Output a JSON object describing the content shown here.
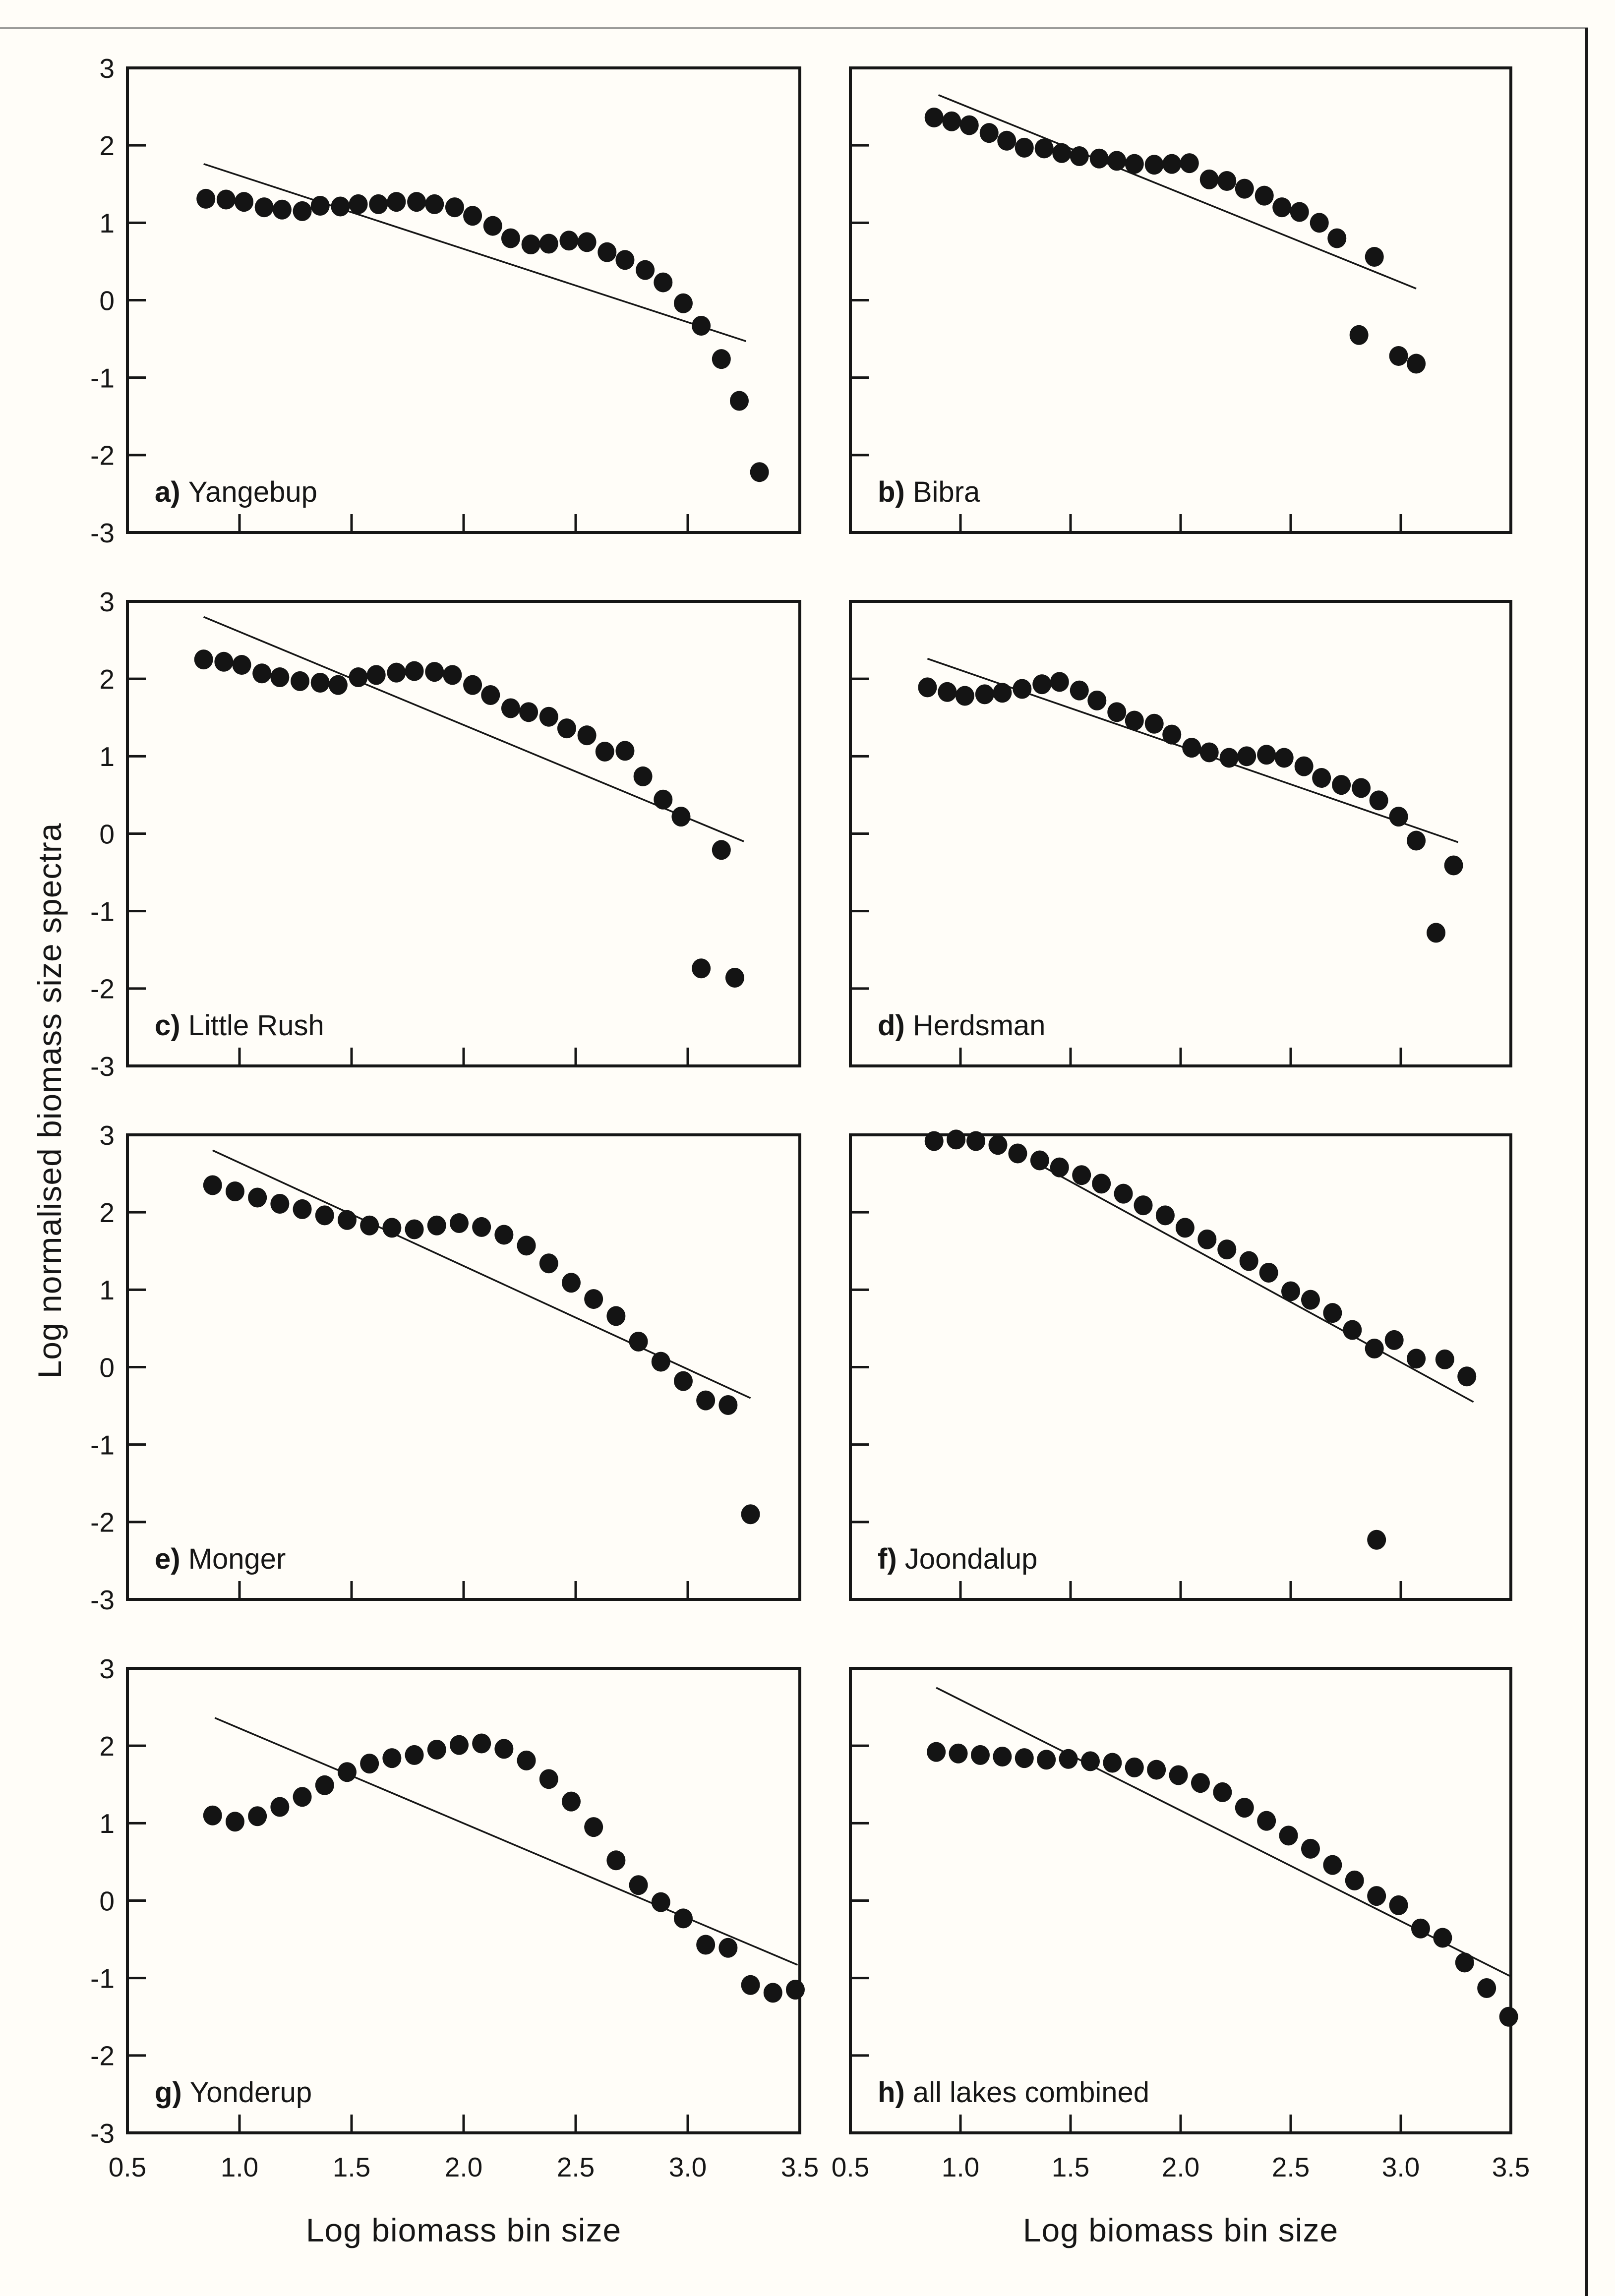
{
  "figure": {
    "y_axis_title": "Log normalised biomass size spectra",
    "x_axis_title": "Log biomass bin size",
    "colors": {
      "ink": "#161616",
      "dot": "#141414",
      "background": "#fffdf8",
      "border": "#9a9a98"
    }
  },
  "chart_data": {
    "type": "scatter",
    "xlabel": "Log biomass bin size",
    "ylabel": "Log normalised biomass size spectra",
    "xlim": [
      0.5,
      3.5
    ],
    "ylim": [
      -3,
      3
    ],
    "x_ticks": [
      1.0,
      1.5,
      2.0,
      2.5,
      3.0
    ],
    "x_tick_labels": [
      "0.5",
      "1.0",
      "1.5",
      "2.0",
      "2.5",
      "3.0",
      "3.5"
    ],
    "x_tick_label_values": [
      0.5,
      1.0,
      1.5,
      2.0,
      2.5,
      3.0,
      3.5
    ],
    "y_ticks": [
      -2,
      -1,
      0,
      1,
      2
    ],
    "y_tick_labels": [
      "3",
      "2",
      "1",
      "0",
      "-1",
      "-2",
      "-3"
    ],
    "y_tick_label_values": [
      3,
      2,
      1,
      0,
      -1,
      -2,
      -3
    ],
    "grid": false,
    "legend": "none",
    "panels": [
      {
        "letter": "a",
        "name": "Yangebup",
        "points": [
          [
            0.85,
            1.31
          ],
          [
            0.94,
            1.3
          ],
          [
            1.02,
            1.27
          ],
          [
            1.11,
            1.2
          ],
          [
            1.19,
            1.17
          ],
          [
            1.28,
            1.15
          ],
          [
            1.36,
            1.22
          ],
          [
            1.45,
            1.21
          ],
          [
            1.53,
            1.24
          ],
          [
            1.62,
            1.24
          ],
          [
            1.7,
            1.27
          ],
          [
            1.79,
            1.27
          ],
          [
            1.87,
            1.24
          ],
          [
            1.96,
            1.2
          ],
          [
            2.04,
            1.09
          ],
          [
            2.13,
            0.96
          ],
          [
            2.21,
            0.8
          ],
          [
            2.3,
            0.72
          ],
          [
            2.38,
            0.73
          ],
          [
            2.47,
            0.77
          ],
          [
            2.55,
            0.75
          ],
          [
            2.64,
            0.62
          ],
          [
            2.72,
            0.52
          ],
          [
            2.81,
            0.39
          ],
          [
            2.89,
            0.23
          ],
          [
            2.98,
            -0.04
          ],
          [
            3.06,
            -0.33
          ],
          [
            3.15,
            -0.76
          ],
          [
            3.23,
            -1.3
          ],
          [
            3.32,
            -2.22
          ]
        ],
        "trendline": {
          "x1": 0.84,
          "y1": 1.76,
          "x2": 3.26,
          "y2": -0.53
        }
      },
      {
        "letter": "b",
        "name": "Bibra",
        "points": [
          [
            0.88,
            2.36
          ],
          [
            0.96,
            2.31
          ],
          [
            1.04,
            2.26
          ],
          [
            1.13,
            2.16
          ],
          [
            1.21,
            2.06
          ],
          [
            1.29,
            1.97
          ],
          [
            1.38,
            1.96
          ],
          [
            1.46,
            1.9
          ],
          [
            1.54,
            1.86
          ],
          [
            1.63,
            1.83
          ],
          [
            1.71,
            1.8
          ],
          [
            1.79,
            1.76
          ],
          [
            1.88,
            1.75
          ],
          [
            1.96,
            1.76
          ],
          [
            2.04,
            1.77
          ],
          [
            2.13,
            1.56
          ],
          [
            2.21,
            1.54
          ],
          [
            2.29,
            1.44
          ],
          [
            2.38,
            1.35
          ],
          [
            2.46,
            1.2
          ],
          [
            2.54,
            1.14
          ],
          [
            2.63,
            1.0
          ],
          [
            2.71,
            0.8
          ],
          [
            2.88,
            0.56
          ],
          [
            2.81,
            -0.45
          ],
          [
            2.99,
            -0.72
          ],
          [
            3.07,
            -0.82
          ]
        ],
        "trendline": {
          "x1": 0.9,
          "y1": 2.65,
          "x2": 3.07,
          "y2": 0.15
        }
      },
      {
        "letter": "c",
        "name": "Little Rush",
        "points": [
          [
            0.84,
            2.25
          ],
          [
            0.93,
            2.22
          ],
          [
            1.01,
            2.18
          ],
          [
            1.1,
            2.07
          ],
          [
            1.18,
            2.02
          ],
          [
            1.27,
            1.97
          ],
          [
            1.36,
            1.95
          ],
          [
            1.44,
            1.92
          ],
          [
            1.53,
            2.02
          ],
          [
            1.61,
            2.05
          ],
          [
            1.7,
            2.08
          ],
          [
            1.78,
            2.1
          ],
          [
            1.87,
            2.09
          ],
          [
            1.95,
            2.05
          ],
          [
            2.04,
            1.92
          ],
          [
            2.12,
            1.79
          ],
          [
            2.21,
            1.62
          ],
          [
            2.29,
            1.57
          ],
          [
            2.38,
            1.51
          ],
          [
            2.46,
            1.36
          ],
          [
            2.55,
            1.27
          ],
          [
            2.63,
            1.06
          ],
          [
            2.72,
            1.07
          ],
          [
            2.8,
            0.74
          ],
          [
            2.89,
            0.44
          ],
          [
            2.97,
            0.22
          ],
          [
            3.15,
            -0.21
          ],
          [
            3.06,
            -1.74
          ],
          [
            3.21,
            -1.86
          ]
        ],
        "trendline": {
          "x1": 0.84,
          "y1": 2.8,
          "x2": 3.25,
          "y2": -0.1
        }
      },
      {
        "letter": "d",
        "name": "Herdsman",
        "points": [
          [
            0.85,
            1.89
          ],
          [
            0.94,
            1.83
          ],
          [
            1.02,
            1.78
          ],
          [
            1.11,
            1.8
          ],
          [
            1.19,
            1.82
          ],
          [
            1.28,
            1.87
          ],
          [
            1.37,
            1.93
          ],
          [
            1.45,
            1.96
          ],
          [
            1.54,
            1.85
          ],
          [
            1.62,
            1.72
          ],
          [
            1.71,
            1.57
          ],
          [
            1.79,
            1.46
          ],
          [
            1.88,
            1.42
          ],
          [
            1.96,
            1.28
          ],
          [
            2.05,
            1.11
          ],
          [
            2.13,
            1.05
          ],
          [
            2.22,
            0.98
          ],
          [
            2.3,
            1.0
          ],
          [
            2.39,
            1.02
          ],
          [
            2.47,
            0.98
          ],
          [
            2.56,
            0.87
          ],
          [
            2.64,
            0.72
          ],
          [
            2.73,
            0.63
          ],
          [
            2.82,
            0.59
          ],
          [
            2.9,
            0.43
          ],
          [
            2.99,
            0.22
          ],
          [
            3.07,
            -0.09
          ],
          [
            3.24,
            -0.41
          ],
          [
            3.16,
            -1.28
          ]
        ],
        "trendline": {
          "x1": 0.85,
          "y1": 2.26,
          "x2": 3.26,
          "y2": -0.11
        }
      },
      {
        "letter": "e",
        "name": "Monger",
        "points": [
          [
            0.88,
            2.35
          ],
          [
            0.98,
            2.27
          ],
          [
            1.08,
            2.19
          ],
          [
            1.18,
            2.11
          ],
          [
            1.28,
            2.04
          ],
          [
            1.38,
            1.96
          ],
          [
            1.48,
            1.9
          ],
          [
            1.58,
            1.83
          ],
          [
            1.68,
            1.8
          ],
          [
            1.78,
            1.78
          ],
          [
            1.88,
            1.83
          ],
          [
            1.98,
            1.86
          ],
          [
            2.08,
            1.81
          ],
          [
            2.18,
            1.71
          ],
          [
            2.28,
            1.57
          ],
          [
            2.38,
            1.34
          ],
          [
            2.48,
            1.09
          ],
          [
            2.58,
            0.88
          ],
          [
            2.68,
            0.66
          ],
          [
            2.78,
            0.33
          ],
          [
            2.88,
            0.07
          ],
          [
            2.98,
            -0.18
          ],
          [
            3.08,
            -0.43
          ],
          [
            3.18,
            -0.49
          ],
          [
            3.28,
            -1.9
          ]
        ],
        "trendline": {
          "x1": 0.88,
          "y1": 2.8,
          "x2": 3.28,
          "y2": -0.4
        }
      },
      {
        "letter": "f",
        "name": "Joondalup",
        "points": [
          [
            0.88,
            2.92
          ],
          [
            0.98,
            2.94
          ],
          [
            1.07,
            2.92
          ],
          [
            1.17,
            2.87
          ],
          [
            1.26,
            2.76
          ],
          [
            1.36,
            2.67
          ],
          [
            1.45,
            2.58
          ],
          [
            1.55,
            2.48
          ],
          [
            1.64,
            2.37
          ],
          [
            1.74,
            2.24
          ],
          [
            1.83,
            2.09
          ],
          [
            1.93,
            1.96
          ],
          [
            2.02,
            1.8
          ],
          [
            2.12,
            1.65
          ],
          [
            2.21,
            1.52
          ],
          [
            2.31,
            1.37
          ],
          [
            2.4,
            1.22
          ],
          [
            2.5,
            0.98
          ],
          [
            2.59,
            0.87
          ],
          [
            2.69,
            0.7
          ],
          [
            2.78,
            0.48
          ],
          [
            2.88,
            0.24
          ],
          [
            2.97,
            0.35
          ],
          [
            3.07,
            0.11
          ],
          [
            3.2,
            0.1
          ],
          [
            3.3,
            -0.12
          ],
          [
            2.89,
            -2.23
          ]
        ],
        "trendline": {
          "x1": 1.33,
          "y1": 2.66,
          "x2": 3.33,
          "y2": -0.45
        }
      },
      {
        "letter": "g",
        "name": "Yonderup",
        "points": [
          [
            0.88,
            1.1
          ],
          [
            0.98,
            1.02
          ],
          [
            1.08,
            1.09
          ],
          [
            1.18,
            1.21
          ],
          [
            1.28,
            1.34
          ],
          [
            1.38,
            1.49
          ],
          [
            1.48,
            1.66
          ],
          [
            1.58,
            1.77
          ],
          [
            1.68,
            1.84
          ],
          [
            1.78,
            1.88
          ],
          [
            1.88,
            1.95
          ],
          [
            1.98,
            2.01
          ],
          [
            2.08,
            2.03
          ],
          [
            2.18,
            1.96
          ],
          [
            2.28,
            1.81
          ],
          [
            2.38,
            1.57
          ],
          [
            2.48,
            1.28
          ],
          [
            2.58,
            0.95
          ],
          [
            2.68,
            0.52
          ],
          [
            2.78,
            0.2
          ],
          [
            2.88,
            -0.02
          ],
          [
            2.98,
            -0.23
          ],
          [
            3.08,
            -0.57
          ],
          [
            3.18,
            -0.61
          ],
          [
            3.28,
            -1.09
          ],
          [
            3.38,
            -1.19
          ],
          [
            3.48,
            -1.15
          ]
        ],
        "trendline": {
          "x1": 0.89,
          "y1": 2.36,
          "x2": 3.49,
          "y2": -0.83
        }
      },
      {
        "letter": "h",
        "name": "all lakes combined",
        "points": [
          [
            0.89,
            1.92
          ],
          [
            0.99,
            1.9
          ],
          [
            1.09,
            1.88
          ],
          [
            1.19,
            1.86
          ],
          [
            1.29,
            1.84
          ],
          [
            1.39,
            1.82
          ],
          [
            1.49,
            1.83
          ],
          [
            1.59,
            1.8
          ],
          [
            1.69,
            1.78
          ],
          [
            1.79,
            1.72
          ],
          [
            1.89,
            1.69
          ],
          [
            1.99,
            1.62
          ],
          [
            2.09,
            1.52
          ],
          [
            2.19,
            1.4
          ],
          [
            2.29,
            1.2
          ],
          [
            2.39,
            1.03
          ],
          [
            2.49,
            0.84
          ],
          [
            2.59,
            0.67
          ],
          [
            2.69,
            0.46
          ],
          [
            2.79,
            0.26
          ],
          [
            2.89,
            0.06
          ],
          [
            2.99,
            -0.06
          ],
          [
            3.09,
            -0.36
          ],
          [
            3.19,
            -0.48
          ],
          [
            3.29,
            -0.8
          ],
          [
            3.39,
            -1.13
          ],
          [
            3.49,
            -1.5
          ]
        ],
        "trendline": {
          "x1": 0.89,
          "y1": 2.75,
          "x2": 3.5,
          "y2": -0.98
        }
      }
    ]
  }
}
